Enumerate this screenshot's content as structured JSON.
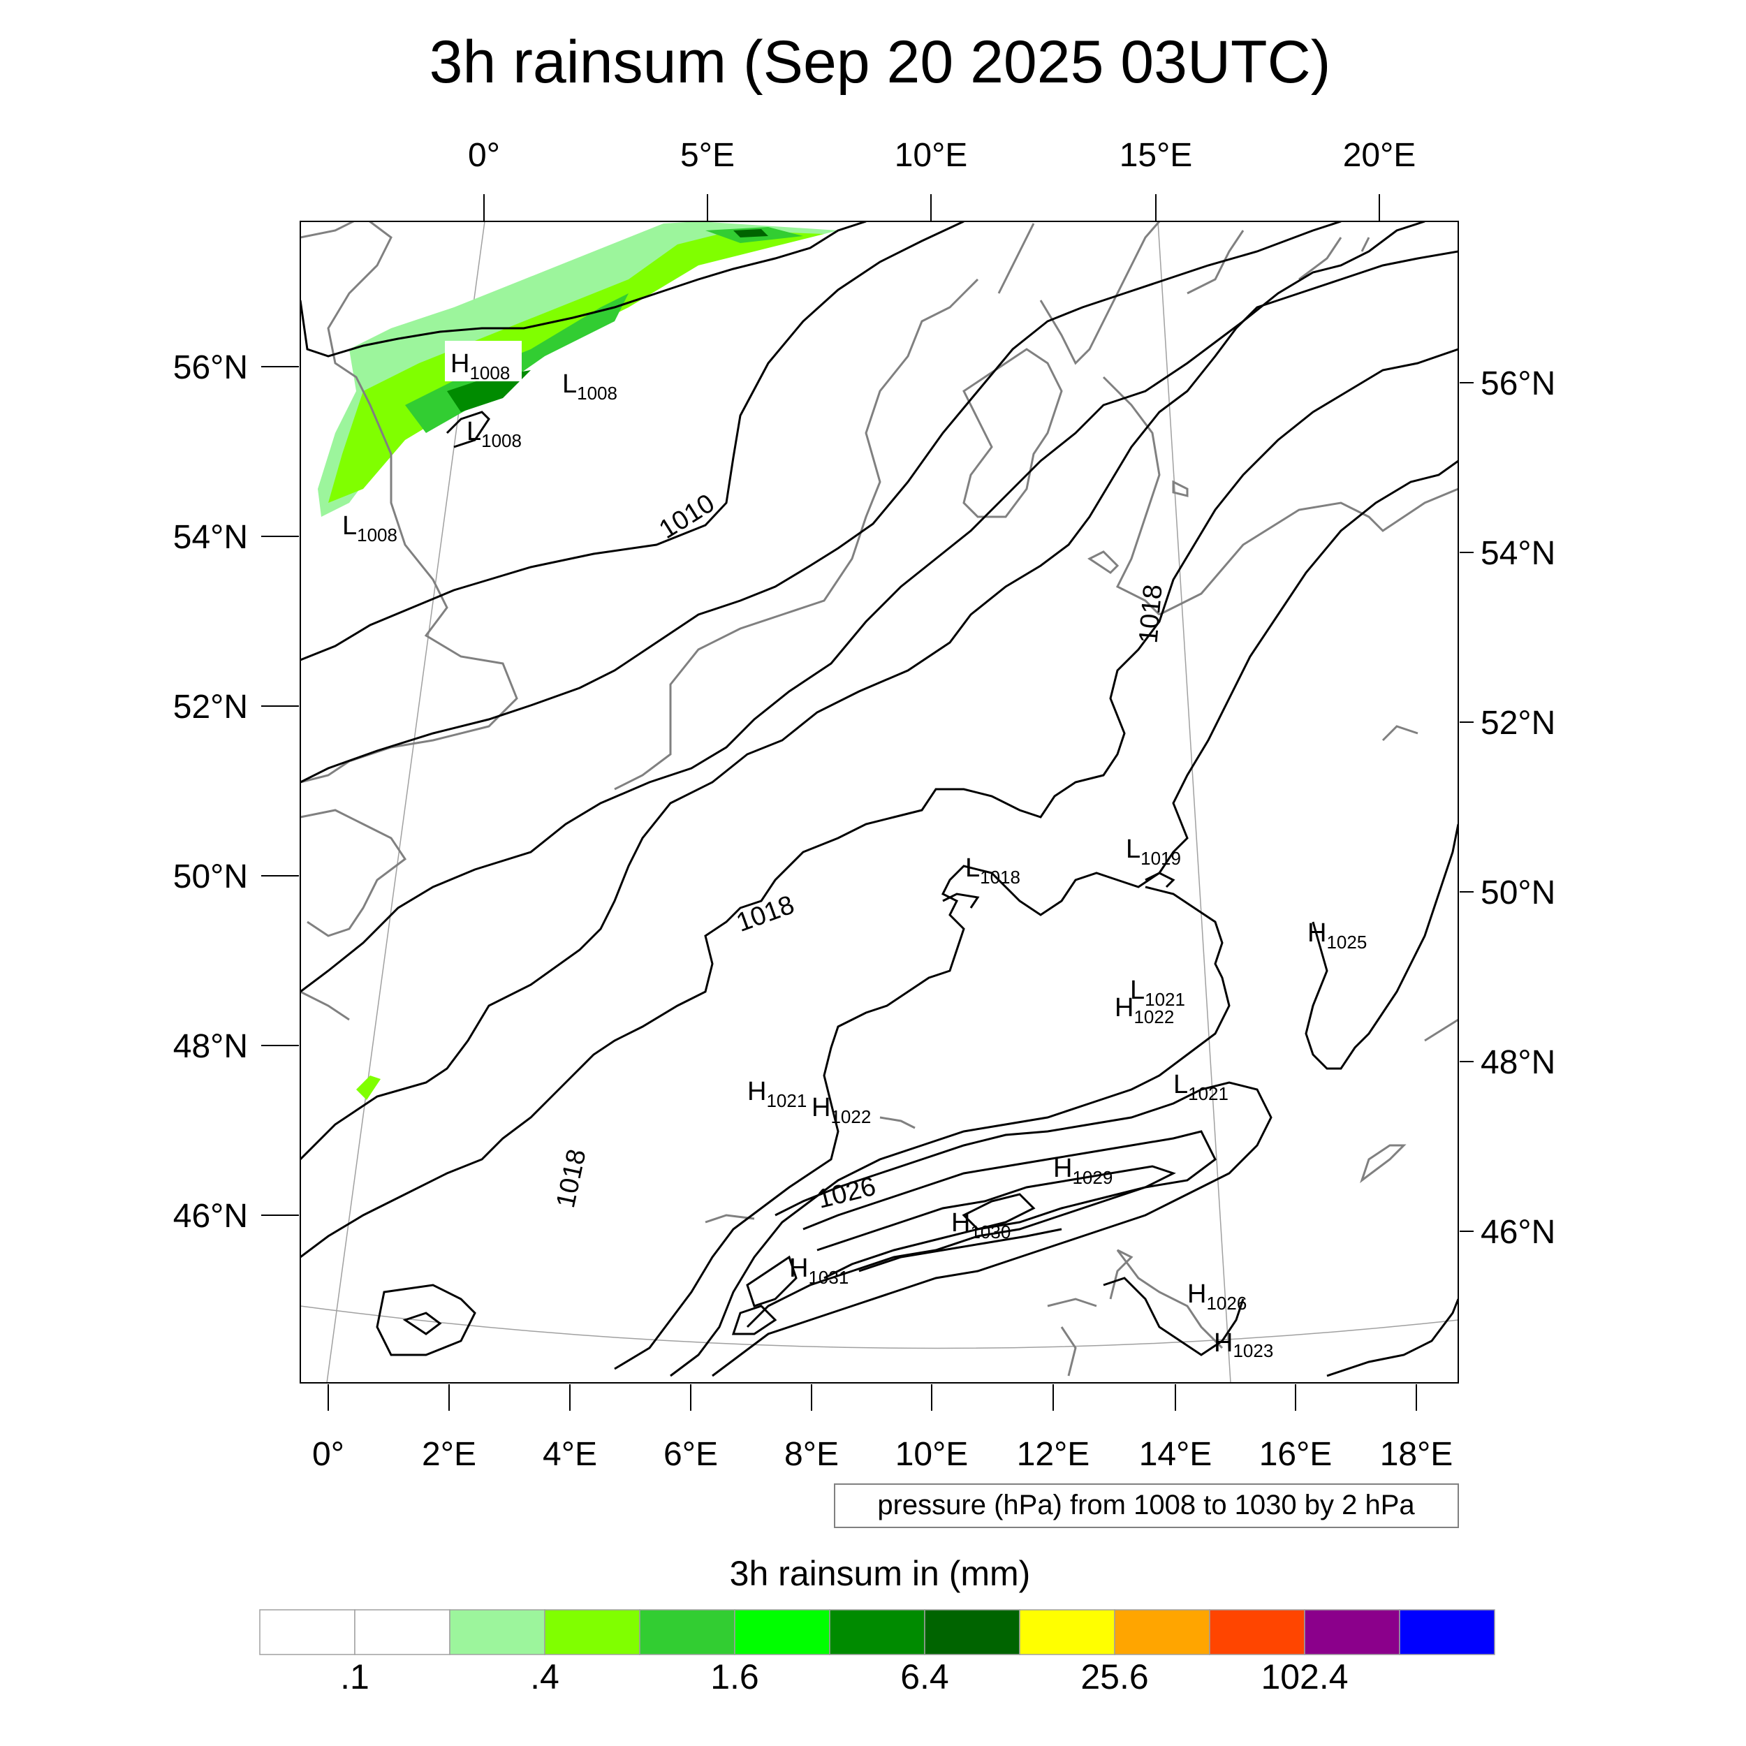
{
  "title": "3h rainsum (Sep 20 2025 03UTC)",
  "top_lon_labels": [
    "0°",
    "5°E",
    "10°E",
    "15°E",
    "20°E"
  ],
  "bottom_lon_labels": [
    "0°",
    "2°E",
    "4°E",
    "6°E",
    "8°E",
    "10°E",
    "12°E",
    "14°E",
    "16°E",
    "18°E"
  ],
  "left_lat_labels": [
    "56°N",
    "54°N",
    "52°N",
    "50°N",
    "48°N",
    "46°N"
  ],
  "right_lat_labels": [
    "56°N",
    "54°N",
    "52°N",
    "50°N",
    "48°N",
    "46°N"
  ],
  "contour_labels": [
    "1010",
    "1018",
    "1018",
    "1018",
    "1026"
  ],
  "pressure_centers": [
    {
      "kind": "H",
      "value": "1008"
    },
    {
      "kind": "L",
      "value": "1008"
    },
    {
      "kind": "L",
      "value": "1008"
    },
    {
      "kind": "L",
      "value": "1008"
    },
    {
      "kind": "L",
      "value": "1018"
    },
    {
      "kind": "L",
      "value": "1019"
    },
    {
      "kind": "H",
      "value": "1025"
    },
    {
      "kind": "L",
      "value": "1021"
    },
    {
      "kind": "H",
      "value": "1022"
    },
    {
      "kind": "H",
      "value": "1021"
    },
    {
      "kind": "H",
      "value": "1022"
    },
    {
      "kind": "L",
      "value": "1021"
    },
    {
      "kind": "H",
      "value": "1029"
    },
    {
      "kind": "H",
      "value": "1030"
    },
    {
      "kind": "H",
      "value": "1031"
    },
    {
      "kind": "H",
      "value": "1026"
    },
    {
      "kind": "H",
      "value": "1023"
    }
  ],
  "info_box": "pressure (hPa) from 1008 to 1030 by 2 hPa",
  "colorbar": {
    "title": "3h rainsum in (mm)",
    "colors": [
      "#ffffff",
      "#ffffff",
      "#9cf59c",
      "#80ff00",
      "#32cd32",
      "#00ff00",
      "#008b00",
      "#006400",
      "#ffff00",
      "#ffa500",
      "#ff4500",
      "#8b008b",
      "#0000ff"
    ],
    "labels": [
      ".1",
      ".4",
      "1.6",
      "6.4",
      "25.6",
      "102.4"
    ]
  },
  "colors": {
    "coast": "#808080",
    "isobar": "#000000",
    "graticule": "#a0a0a0"
  }
}
